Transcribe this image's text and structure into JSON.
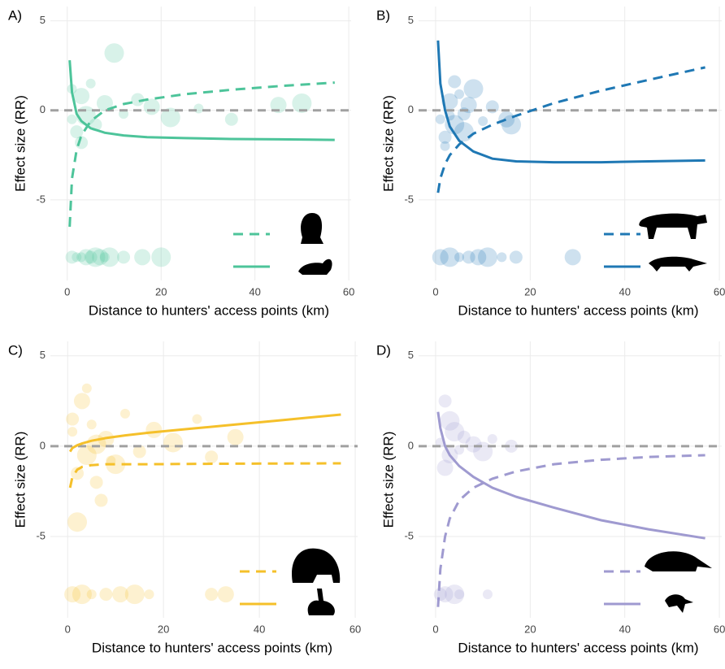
{
  "chart_data": [
    {
      "type": "line",
      "panel_label": "A)",
      "x_label": "Distance to hunters' access points (km)",
      "y_label": "Effect size (RR)",
      "xlim": [
        -3.6,
        60.5
      ],
      "ylim": [
        -9.5,
        5.8
      ],
      "xticks": [
        0,
        20,
        40,
        60
      ],
      "yticks": [
        -5,
        0,
        5
      ],
      "grid": true,
      "reference_line": 0,
      "legend": "bottom-right",
      "scatter": {
        "color": "#4dc49a",
        "x": [
          1,
          2,
          3,
          4,
          5,
          6,
          8,
          10,
          12,
          15,
          18,
          22,
          28,
          35,
          45,
          50,
          3,
          5,
          7,
          9,
          2,
          1,
          4,
          6,
          8,
          12,
          16,
          20,
          1,
          3
        ],
        "values": [
          -0.5,
          -1.2,
          0.8,
          -0.3,
          1.5,
          -0.8,
          0.4,
          3.2,
          -0.2,
          0.6,
          0.2,
          -0.4,
          0.1,
          -0.5,
          0.3,
          0.4,
          -8.2,
          -8.2,
          -8.2,
          -8.2,
          -8.2,
          -8.2,
          -8.2,
          -8.2,
          -8.2,
          -8.2,
          -8.2,
          -8.2,
          1.2,
          -1.8
        ]
      },
      "series": [
        {
          "style": "dashed",
          "color": "#4dc49a",
          "x": [
            0.5,
            1,
            2,
            3,
            5,
            8,
            12,
            17,
            25,
            35,
            45,
            57
          ],
          "values": [
            -6.5,
            -3.8,
            -2.2,
            -1.4,
            -0.6,
            0,
            0.35,
            0.6,
            0.9,
            1.15,
            1.35,
            1.55
          ]
        },
        {
          "style": "solid",
          "color": "#4dc49a",
          "x": [
            0.5,
            1,
            2,
            3,
            5,
            8,
            12,
            17,
            25,
            35,
            45,
            57
          ],
          "values": [
            2.8,
            1.0,
            -0.2,
            -0.6,
            -1.0,
            -1.25,
            -1.4,
            -1.5,
            -1.55,
            -1.6,
            -1.62,
            -1.65
          ]
        }
      ]
    },
    {
      "type": "line",
      "panel_label": "B)",
      "x_label": "Distance to hunters' access points (km)",
      "y_label": "Effect size (RR)",
      "xlim": [
        -3.6,
        60.5
      ],
      "ylim": [
        -9.5,
        5.8
      ],
      "xticks": [
        0,
        20,
        40,
        60
      ],
      "yticks": [
        -5,
        0,
        5
      ],
      "grid": true,
      "reference_line": 0,
      "legend": "bottom-right",
      "scatter": {
        "color": "#1f78b4",
        "x": [
          1,
          2,
          3,
          4,
          5,
          6,
          7,
          8,
          10,
          12,
          15,
          16,
          2,
          4,
          1,
          3,
          5,
          7,
          9,
          11,
          14,
          17,
          29,
          6,
          3
        ],
        "values": [
          -0.5,
          -1.5,
          0.5,
          -0.8,
          0.9,
          -0.2,
          0.3,
          1.2,
          -0.6,
          0.2,
          -0.5,
          -0.8,
          -2.0,
          1.6,
          -8.2,
          -8.2,
          -8.2,
          -8.2,
          -8.2,
          -8.2,
          -8.2,
          -8.2,
          -8.2,
          -1.2,
          -0.3
        ]
      },
      "series": [
        {
          "style": "dashed",
          "color": "#1f78b4",
          "x": [
            0.5,
            1,
            2,
            3,
            5,
            8,
            12,
            17,
            25,
            35,
            45,
            57
          ],
          "values": [
            -4.6,
            -3.8,
            -3.0,
            -2.5,
            -1.9,
            -1.3,
            -0.8,
            -0.3,
            0.4,
            1.1,
            1.7,
            2.4
          ]
        },
        {
          "style": "solid",
          "color": "#1f78b4",
          "x": [
            0.5,
            1,
            2,
            3,
            5,
            8,
            12,
            17,
            25,
            35,
            45,
            57
          ],
          "values": [
            3.9,
            1.5,
            0.0,
            -0.9,
            -1.7,
            -2.3,
            -2.7,
            -2.85,
            -2.9,
            -2.9,
            -2.85,
            -2.8
          ]
        }
      ]
    },
    {
      "type": "line",
      "panel_label": "C)",
      "x_label": "Distance to hunters' access points (km)",
      "y_label": "Effect size (RR)",
      "xlim": [
        -3.6,
        60.5
      ],
      "ylim": [
        -9.5,
        5.8
      ],
      "xticks": [
        0,
        20,
        40,
        60
      ],
      "yticks": [
        -5,
        0,
        5
      ],
      "grid": true,
      "reference_line": 0,
      "legend": "bottom-right",
      "scatter": {
        "color": "#f5c02a",
        "x": [
          1,
          2,
          3,
          4,
          5,
          6,
          8,
          10,
          12,
          15,
          18,
          22,
          27,
          30,
          35,
          2,
          4,
          7,
          1,
          3,
          5,
          8,
          11,
          14,
          17,
          30,
          33,
          6,
          9,
          1
        ],
        "values": [
          0.8,
          -1.5,
          2.5,
          -0.5,
          1.2,
          -2.0,
          0.4,
          -1.0,
          1.8,
          -0.3,
          0.9,
          0.2,
          1.5,
          -0.6,
          0.5,
          -4.2,
          3.2,
          -3.0,
          -8.2,
          -8.2,
          -8.2,
          -8.2,
          -8.2,
          -8.2,
          -8.2,
          -8.2,
          -8.2,
          0.1,
          -0.8,
          1.5
        ]
      },
      "series": [
        {
          "style": "dashed",
          "color": "#f5c02a",
          "x": [
            0.5,
            1,
            2,
            3,
            5,
            8,
            12,
            17,
            25,
            35,
            45,
            57
          ],
          "values": [
            -2.3,
            -1.7,
            -1.3,
            -1.15,
            -1.05,
            -1.0,
            -1.0,
            -1.0,
            -0.98,
            -0.97,
            -0.96,
            -0.95
          ]
        },
        {
          "style": "solid",
          "color": "#f5c02a",
          "x": [
            0.5,
            1,
            2,
            3,
            5,
            8,
            12,
            17,
            25,
            35,
            45,
            57
          ],
          "values": [
            -0.3,
            -0.1,
            0.05,
            0.15,
            0.3,
            0.45,
            0.6,
            0.75,
            0.95,
            1.2,
            1.45,
            1.75
          ]
        }
      ]
    },
    {
      "type": "line",
      "panel_label": "D)",
      "x_label": "Distance to hunters' access points (km)",
      "y_label": "Effect size (RR)",
      "xlim": [
        -3.6,
        60.5
      ],
      "ylim": [
        -9.5,
        5.8
      ],
      "xticks": [
        0,
        20,
        40,
        60
      ],
      "yticks": [
        -5,
        0,
        5
      ],
      "grid": true,
      "reference_line": 0,
      "legend": "bottom-right",
      "scatter": {
        "color": "#9f9ad0",
        "x": [
          1,
          2,
          3,
          4,
          5,
          6,
          8,
          10,
          12,
          16,
          2,
          3,
          5,
          1,
          2,
          4,
          11
        ],
        "values": [
          0.2,
          2.5,
          -0.5,
          0.8,
          -0.2,
          0.5,
          0.1,
          -0.3,
          0.4,
          0.0,
          -1.2,
          1.4,
          -8.2,
          -8.2,
          -8.2,
          -8.2,
          -8.2
        ]
      },
      "series": [
        {
          "style": "dashed",
          "color": "#9f9ad0",
          "x": [
            0.5,
            1,
            2,
            3,
            5,
            8,
            12,
            17,
            25,
            35,
            45,
            57
          ],
          "values": [
            -8.9,
            -6.8,
            -5.0,
            -4.0,
            -3.0,
            -2.3,
            -1.8,
            -1.4,
            -1.0,
            -0.75,
            -0.6,
            -0.5
          ]
        },
        {
          "style": "solid",
          "color": "#9f9ad0",
          "x": [
            0.5,
            1,
            2,
            3,
            5,
            8,
            12,
            17,
            25,
            35,
            45,
            57
          ],
          "values": [
            1.9,
            1.0,
            0.0,
            -0.5,
            -1.1,
            -1.7,
            -2.3,
            -2.8,
            -3.4,
            -4.1,
            -4.6,
            -5.1
          ]
        }
      ]
    }
  ]
}
